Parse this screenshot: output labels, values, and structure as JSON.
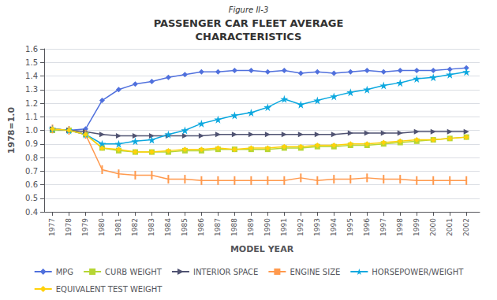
{
  "chart_data": {
    "type": "line",
    "subtitle": "Figure II-3",
    "title": "PASSENGER CAR FLEET AVERAGE\nCHARACTERISTICS",
    "xlabel": "MODEL YEAR",
    "ylabel": "1978=1.0",
    "x": [
      1977,
      1978,
      1979,
      1980,
      1981,
      1982,
      1983,
      1984,
      1985,
      1986,
      1987,
      1988,
      1989,
      1990,
      1991,
      1992,
      1993,
      1994,
      1995,
      1996,
      1997,
      1998,
      1999,
      2000,
      2001,
      2002
    ],
    "xlim": [
      1976.5,
      2002.8
    ],
    "xticks": [
      1977,
      1978,
      1979,
      1980,
      1981,
      1982,
      1983,
      1984,
      1985,
      1986,
      1987,
      1988,
      1989,
      1990,
      1991,
      1992,
      1993,
      1994,
      1995,
      1996,
      1997,
      1998,
      1999,
      2000,
      2001,
      2002
    ],
    "ylim": [
      0.4,
      1.6
    ],
    "yticks": [
      0.4,
      0.5,
      0.6,
      0.7,
      0.8,
      0.9,
      {
        "value": 1,
        "label": "1.0"
      },
      1.1,
      1.2,
      1.3,
      1.4,
      1.5,
      1.6
    ],
    "grid": true,
    "legend": "bottom",
    "series": [
      {
        "name": "MPG",
        "marker": "diamond",
        "values": [
          1.01,
          1.0,
          1.01,
          1.22,
          1.3,
          1.34,
          1.36,
          1.39,
          1.41,
          1.43,
          1.43,
          1.44,
          1.44,
          1.43,
          1.44,
          1.42,
          1.43,
          1.42,
          1.43,
          1.44,
          1.43,
          1.44,
          1.44,
          1.44,
          1.45,
          1.46
        ]
      },
      {
        "name": "CURB WEIGHT",
        "marker": "square",
        "values": [
          1.0,
          1.0,
          0.97,
          0.87,
          0.85,
          0.84,
          0.84,
          0.84,
          0.85,
          0.85,
          0.86,
          0.86,
          0.86,
          0.86,
          0.87,
          0.87,
          0.88,
          0.88,
          0.89,
          0.89,
          0.9,
          0.91,
          0.92,
          0.93,
          0.94,
          0.95
        ]
      },
      {
        "name": "INTERIOR SPACE",
        "marker": "triangle-right",
        "values": [
          1.01,
          1.0,
          0.99,
          0.97,
          0.96,
          0.96,
          0.96,
          0.96,
          0.96,
          0.96,
          0.97,
          0.97,
          0.97,
          0.97,
          0.97,
          0.97,
          0.97,
          0.97,
          0.98,
          0.98,
          0.98,
          0.98,
          0.99,
          0.99,
          0.99,
          0.99
        ]
      },
      {
        "name": "ENGINE SIZE",
        "marker": "vline",
        "values": [
          1.01,
          1.0,
          0.97,
          0.71,
          0.68,
          0.67,
          0.67,
          0.64,
          0.64,
          0.63,
          0.63,
          0.63,
          0.63,
          0.63,
          0.63,
          0.65,
          0.63,
          0.64,
          0.64,
          0.65,
          0.64,
          0.64,
          0.63,
          0.63,
          0.63,
          0.63
        ]
      },
      {
        "name": "HORSEPOWER/WEIGHT",
        "marker": "star",
        "values": [
          1.01,
          1.0,
          0.97,
          0.9,
          0.9,
          0.92,
          0.93,
          0.97,
          1.0,
          1.05,
          1.08,
          1.11,
          1.13,
          1.17,
          1.23,
          1.19,
          1.22,
          1.25,
          1.28,
          1.3,
          1.33,
          1.35,
          1.38,
          1.39,
          1.41,
          1.43
        ]
      },
      {
        "name": "EQUIVALENT TEST WEIGHT",
        "marker": "diamond",
        "values": [
          1.01,
          1.0,
          0.97,
          0.87,
          0.86,
          0.84,
          0.84,
          0.85,
          0.86,
          0.86,
          0.87,
          0.86,
          0.87,
          0.87,
          0.88,
          0.88,
          0.89,
          0.89,
          0.9,
          0.9,
          0.91,
          0.92,
          0.93,
          0.93,
          0.94,
          0.95
        ]
      }
    ]
  }
}
